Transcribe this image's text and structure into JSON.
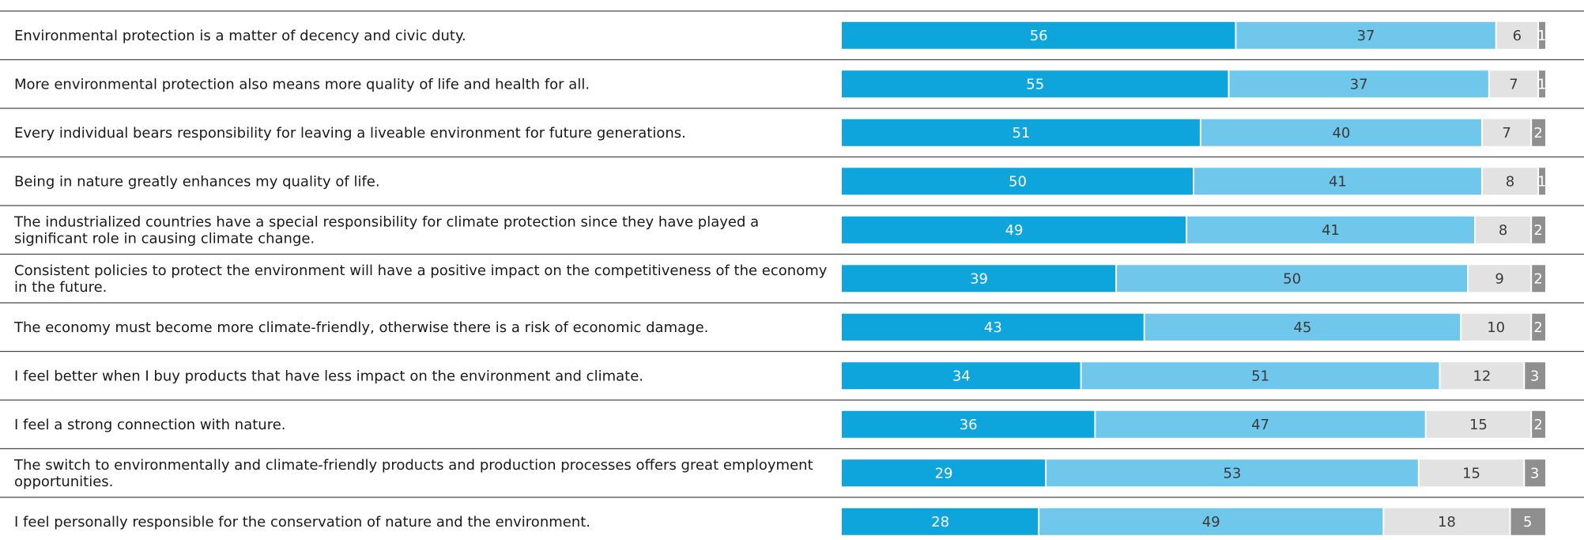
{
  "chart_data": {
    "type": "bar",
    "orientation": "horizontal",
    "stacked": true,
    "percent_scale": [
      0,
      100
    ],
    "legend": "none",
    "grid": false,
    "categories": [
      "Environmental protection is a matter of decency and civic duty.",
      "More environmental protection also means more quality of life and health for all.",
      "Every individual bears responsibility for leaving a liveable environment for future generations.",
      "Being in nature greatly enhances my quality of life.",
      "The industrialized countries have a special responsibility for climate protection since they have played a significant role in causing climate change.",
      "Consistent policies to protect the environment will have a positive impact on the competitiveness of the economy in the future.",
      "The economy must become more climate-friendly, otherwise there is a risk of economic damage.",
      "I feel better when I buy products that have less impact on the environment and climate.",
      "I feel a strong connection with nature.",
      "The switch to environmentally and climate-friendly products and production processes offers great employment opportunities.",
      "I feel personally responsible for the conservation of nature and the environment."
    ],
    "label_lines": [
      [
        "Environmental protection is a matter of decency and civic duty."
      ],
      [
        "More environmental protection also means more quality of life and health for all."
      ],
      [
        "Every individual bears responsibility for leaving a liveable environment for future generations."
      ],
      [
        "Being in nature greatly enhances my quality of life."
      ],
      [
        "The industrialized countries have a special responsibility for climate protection since they have played a",
        "significant role in causing climate change."
      ],
      [
        "Consistent policies to protect the environment will have a positive impact on the competitiveness of the economy",
        "in the future."
      ],
      [
        "The economy must become more climate-friendly, otherwise there is a risk of economic damage."
      ],
      [
        "I feel better when I buy products that have less impact on the environment and climate."
      ],
      [
        "I feel a strong connection with nature."
      ],
      [
        "The switch to environmentally and climate-friendly products and production processes offers great employment",
        "opportunities."
      ],
      [
        "I feel personally responsible for the conservation of nature and the environment."
      ]
    ],
    "series": [
      {
        "values": [
          56,
          55,
          51,
          50,
          49,
          39,
          43,
          34,
          36,
          29,
          28
        ],
        "color": "#0ea5dd",
        "label_color": "#ffffff"
      },
      {
        "values": [
          37,
          37,
          40,
          41,
          41,
          50,
          45,
          51,
          47,
          53,
          49
        ],
        "color": "#6fc7eb",
        "label_color": "#3a3a3a"
      },
      {
        "values": [
          6,
          7,
          7,
          8,
          8,
          9,
          10,
          12,
          15,
          15,
          18
        ],
        "color": "#e2e2e2",
        "label_color": "#3a3a3a"
      },
      {
        "values": [
          1,
          1,
          2,
          1,
          2,
          2,
          2,
          3,
          2,
          3,
          5
        ],
        "color": "#8f8f8f",
        "label_color": "#ffffff"
      }
    ]
  }
}
